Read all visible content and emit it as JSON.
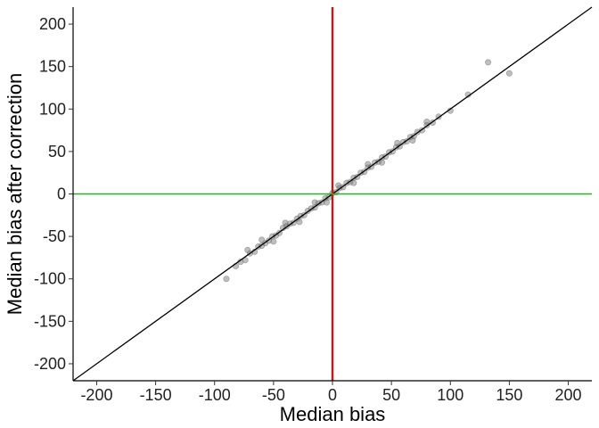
{
  "chart_data": {
    "type": "scatter",
    "title": "",
    "xlabel": "Median bias",
    "ylabel": "Median bias after correction",
    "xlim": [
      -220,
      220
    ],
    "ylim": [
      -220,
      220
    ],
    "x_ticks": [
      -200,
      -150,
      -100,
      -50,
      0,
      50,
      100,
      150,
      200
    ],
    "y_ticks": [
      -200,
      -150,
      -100,
      -50,
      0,
      50,
      100,
      150,
      200
    ],
    "grid": false,
    "legend": "none",
    "reference_lines": [
      {
        "kind": "identity",
        "slope": 1,
        "intercept": 0,
        "color": "#000000"
      },
      {
        "kind": "vertical",
        "x": 0,
        "color": "#b22222"
      },
      {
        "kind": "horizontal",
        "y": 0,
        "color": "#00cc00"
      }
    ],
    "point_color": "#6e6e6e",
    "series": [
      {
        "x": [
          -90,
          -82,
          -78,
          -74,
          -70,
          -66,
          -63,
          -60,
          -57,
          -54,
          -51,
          -48,
          -45,
          -42,
          -39,
          -36,
          -33,
          -30,
          -27,
          -24,
          -21,
          -18,
          -15,
          -12,
          -9,
          -6,
          -3,
          0,
          3,
          6,
          9,
          12,
          15,
          18,
          21,
          24,
          27,
          30,
          33,
          36,
          39,
          42,
          45,
          48,
          51,
          54,
          57,
          60,
          63,
          66,
          69,
          72,
          76,
          80,
          85,
          90,
          100,
          115,
          132,
          150,
          -72,
          -60,
          -50,
          -40,
          -28,
          -15,
          -5,
          5,
          18,
          30,
          42,
          55,
          68,
          80
        ],
        "y": [
          -100,
          -85,
          -80,
          -78,
          -70,
          -68,
          -62,
          -61,
          -58,
          -55,
          -50,
          -49,
          -46,
          -40,
          -38,
          -35,
          -34,
          -29,
          -26,
          -25,
          -20,
          -17,
          -16,
          -11,
          -10,
          -5,
          -4,
          1,
          2,
          7,
          8,
          13,
          14,
          19,
          20,
          25,
          26,
          31,
          32,
          37,
          38,
          43,
          44,
          49,
          50,
          55,
          56,
          61,
          62,
          67,
          68,
          73,
          75,
          81,
          84,
          91,
          98,
          117,
          155,
          142,
          -66,
          -54,
          -56,
          -34,
          -33,
          -10,
          -10,
          10,
          13,
          35,
          37,
          60,
          63,
          85
        ]
      }
    ]
  }
}
